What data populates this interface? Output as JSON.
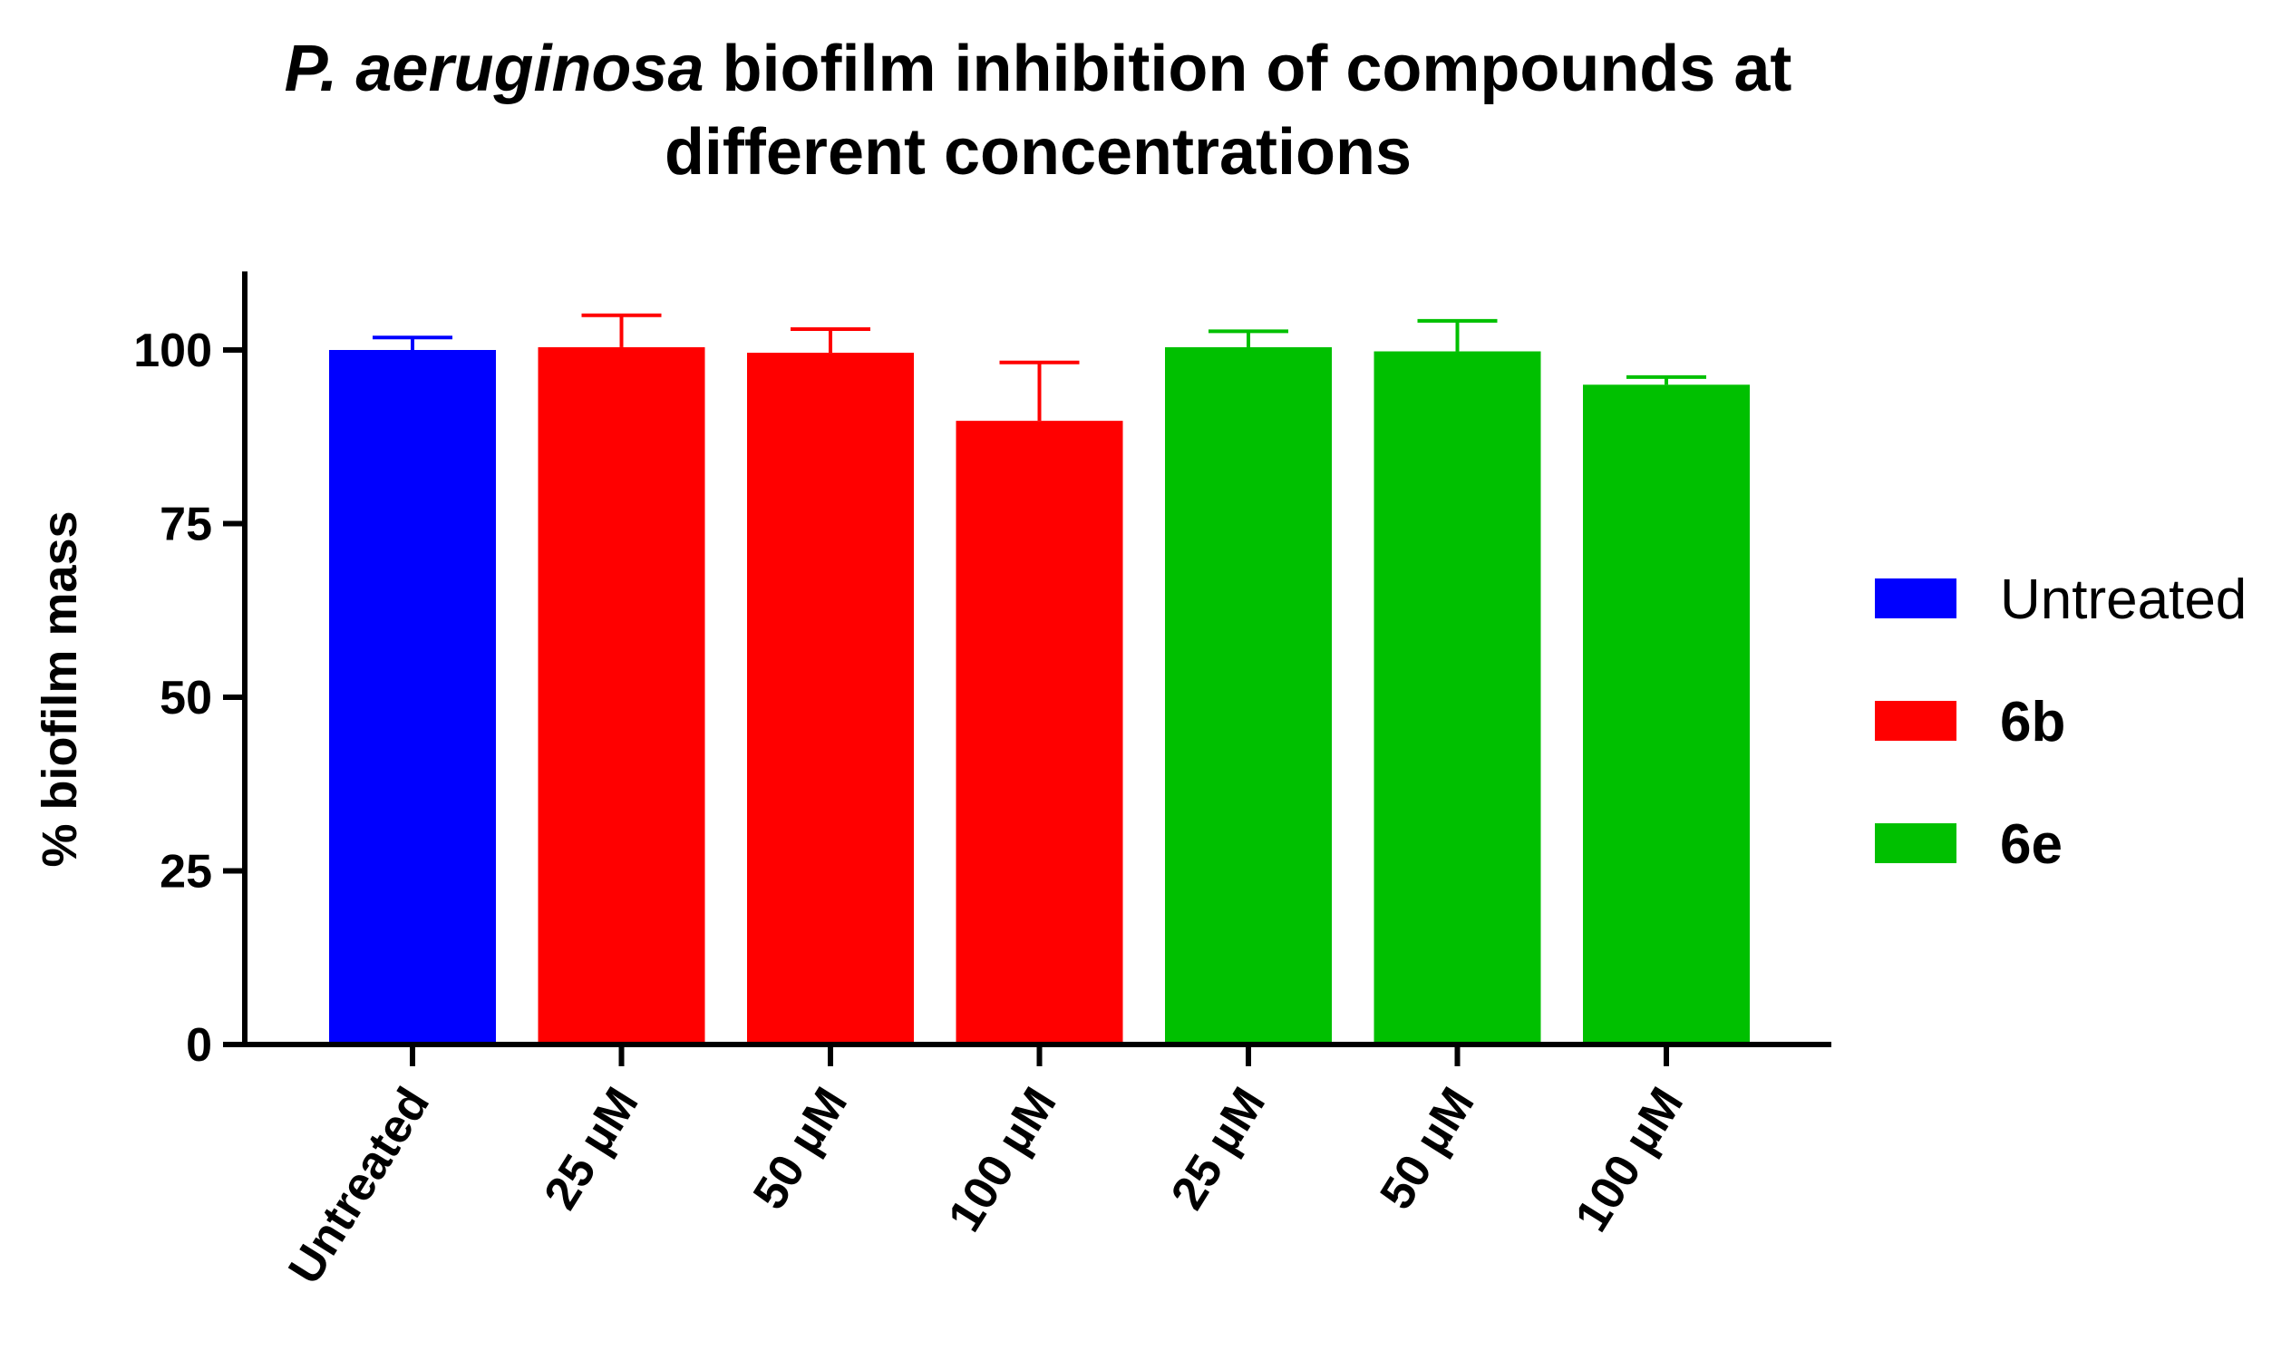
{
  "chart_data": {
    "type": "bar",
    "title_italic": "P. aeruginosa",
    "title_rest": " biofilm inhibition of compounds at",
    "title_line2": "different concentrations",
    "ylabel": "% biofilm mass",
    "xlabel": "",
    "ylim": [
      0,
      110
    ],
    "yticks": [
      0,
      25,
      50,
      75,
      100
    ],
    "ytick_labels": [
      "0",
      "25",
      "50",
      "75",
      "100"
    ],
    "categories": [
      "Untreated",
      "25 µM",
      "50 µM",
      "100 µM",
      "25 µM",
      "50 µM",
      "100 µM"
    ],
    "values": [
      100,
      100.4,
      99.6,
      89.8,
      100.4,
      99.8,
      95.0
    ],
    "errors": [
      1.8,
      4.6,
      3.4,
      8.4,
      2.3,
      4.4,
      1.1
    ],
    "bar_series": [
      "Untreated",
      "6b",
      "6b",
      "6b",
      "6e",
      "6e",
      "6e"
    ],
    "series": [
      {
        "name": "Untreated",
        "color": "#0000ff"
      },
      {
        "name": "6b",
        "color": "#ff0000"
      },
      {
        "name": "6e",
        "color": "#00c000"
      }
    ],
    "legend_position": "right",
    "grid": false
  }
}
